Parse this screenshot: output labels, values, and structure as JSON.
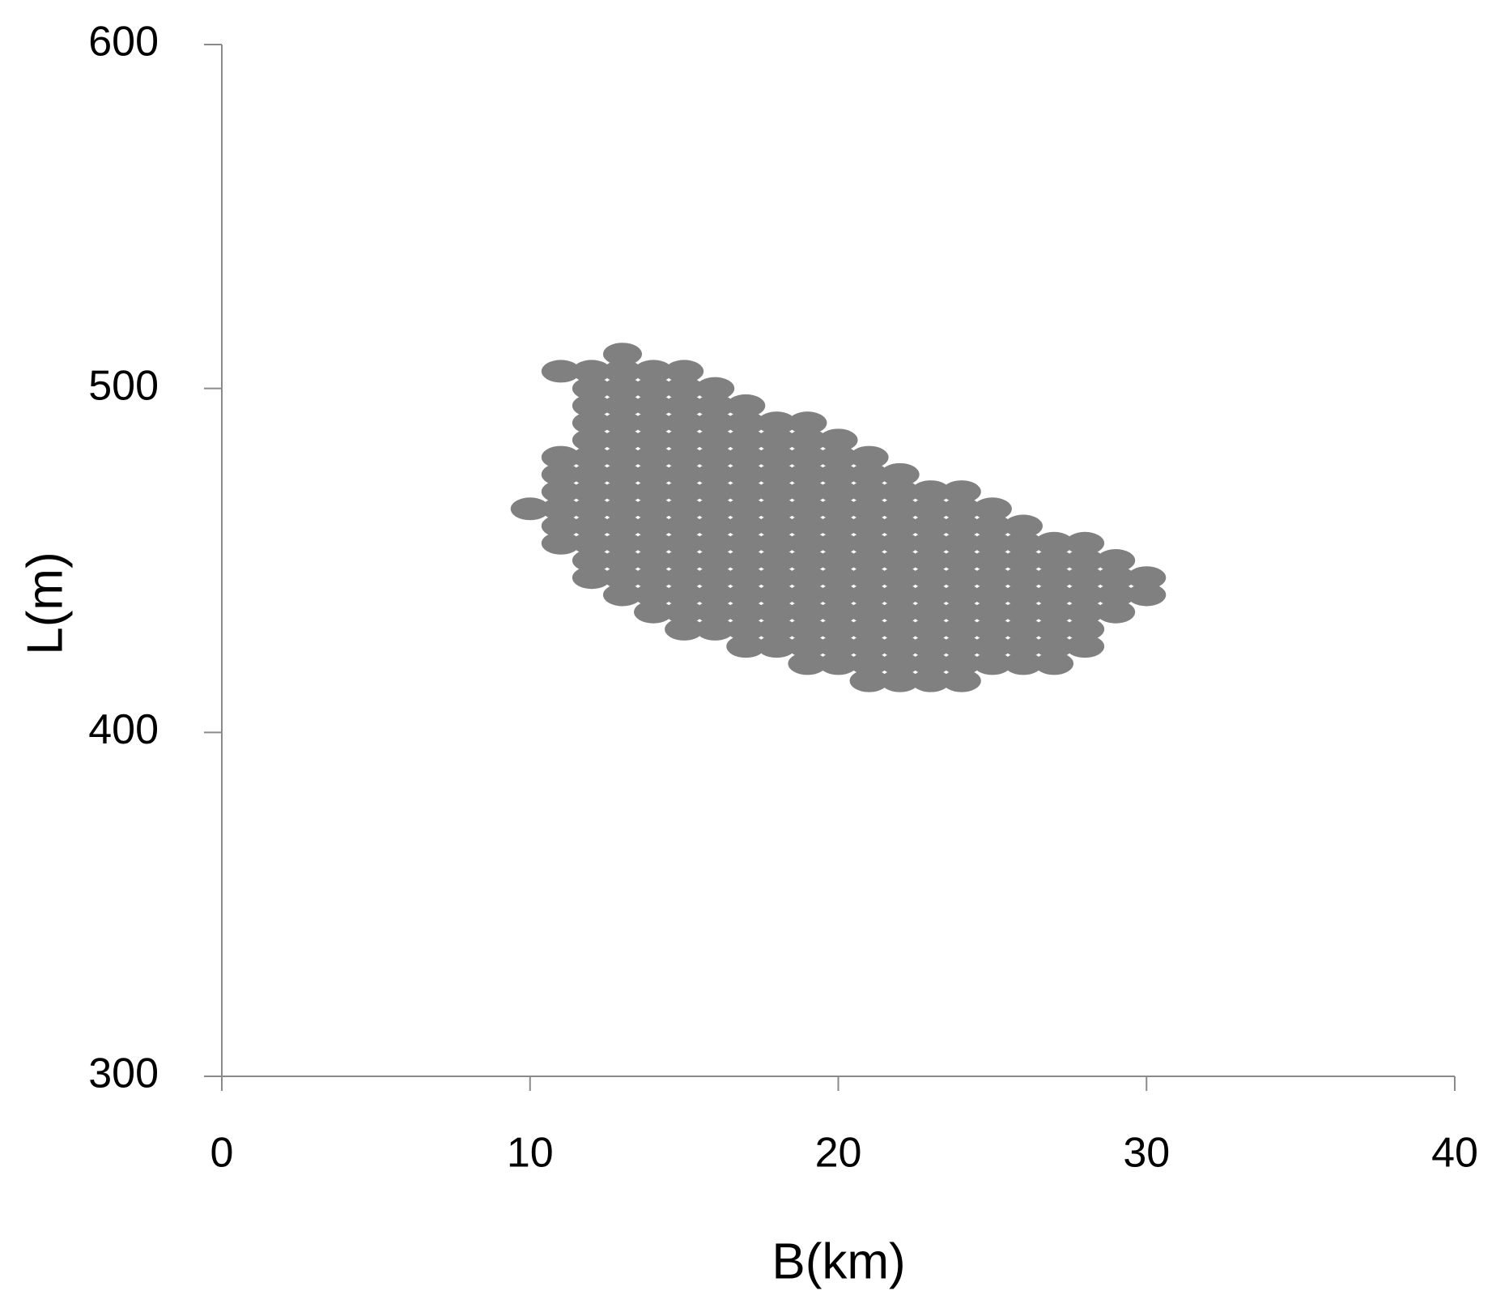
{
  "chart_data": {
    "type": "scatter",
    "color": "#808080",
    "x_label": "B(km)",
    "y_label": "L(m)",
    "xlim": [
      0,
      40
    ],
    "xticks": [
      0,
      10,
      20,
      30,
      40
    ],
    "ylim": [
      300,
      600
    ],
    "yticks": [
      300,
      400,
      500,
      600
    ],
    "x": [
      10,
      11,
      11,
      11,
      11,
      11,
      11,
      11,
      12,
      12,
      12,
      12,
      12,
      12,
      12,
      12,
      12,
      12,
      12,
      12,
      12,
      13,
      13,
      13,
      13,
      13,
      13,
      13,
      13,
      13,
      13,
      13,
      13,
      13,
      13,
      13,
      14,
      14,
      14,
      14,
      14,
      14,
      14,
      14,
      14,
      14,
      14,
      14,
      14,
      14,
      14,
      15,
      15,
      15,
      15,
      15,
      15,
      15,
      15,
      15,
      15,
      15,
      15,
      15,
      15,
      15,
      15,
      16,
      16,
      16,
      16,
      16,
      16,
      16,
      16,
      16,
      16,
      16,
      16,
      16,
      16,
      16,
      17,
      17,
      17,
      17,
      17,
      17,
      17,
      17,
      17,
      17,
      17,
      17,
      17,
      17,
      17,
      18,
      18,
      18,
      18,
      18,
      18,
      18,
      18,
      18,
      18,
      18,
      18,
      18,
      18,
      19,
      19,
      19,
      19,
      19,
      19,
      19,
      19,
      19,
      19,
      19,
      19,
      19,
      19,
      19,
      20,
      20,
      20,
      20,
      20,
      20,
      20,
      20,
      20,
      20,
      20,
      20,
      20,
      20,
      21,
      21,
      21,
      21,
      21,
      21,
      21,
      21,
      21,
      21,
      21,
      21,
      21,
      21,
      22,
      22,
      22,
      22,
      22,
      22,
      22,
      22,
      22,
      22,
      22,
      22,
      22,
      23,
      23,
      23,
      23,
      23,
      23,
      23,
      23,
      23,
      23,
      23,
      23,
      24,
      24,
      24,
      24,
      24,
      24,
      24,
      24,
      24,
      24,
      24,
      24,
      25,
      25,
      25,
      25,
      25,
      25,
      25,
      25,
      25,
      25,
      26,
      26,
      26,
      26,
      26,
      26,
      26,
      26,
      26,
      27,
      27,
      27,
      27,
      27,
      27,
      27,
      27,
      28,
      28,
      28,
      28,
      28,
      28,
      28,
      29,
      29,
      29,
      29,
      30,
      30
    ],
    "values": [
      465,
      455,
      460,
      465,
      470,
      475,
      480,
      505,
      445,
      450,
      455,
      460,
      465,
      470,
      475,
      480,
      485,
      490,
      495,
      500,
      505,
      440,
      445,
      450,
      455,
      460,
      465,
      470,
      475,
      480,
      485,
      490,
      495,
      500,
      505,
      510,
      435,
      440,
      445,
      450,
      455,
      460,
      465,
      470,
      475,
      480,
      485,
      490,
      495,
      500,
      505,
      430,
      435,
      440,
      445,
      450,
      455,
      460,
      465,
      470,
      475,
      480,
      485,
      490,
      495,
      500,
      505,
      430,
      435,
      440,
      445,
      450,
      455,
      460,
      465,
      470,
      475,
      480,
      485,
      490,
      495,
      500,
      425,
      430,
      435,
      440,
      445,
      450,
      455,
      460,
      465,
      470,
      475,
      480,
      485,
      490,
      495,
      425,
      430,
      435,
      440,
      445,
      450,
      455,
      460,
      465,
      470,
      475,
      480,
      485,
      490,
      420,
      425,
      430,
      435,
      440,
      445,
      450,
      455,
      460,
      465,
      470,
      475,
      480,
      485,
      490,
      420,
      425,
      430,
      435,
      440,
      445,
      450,
      455,
      460,
      465,
      470,
      475,
      480,
      485,
      415,
      420,
      425,
      430,
      435,
      440,
      445,
      450,
      455,
      460,
      465,
      470,
      475,
      480,
      415,
      420,
      425,
      430,
      435,
      440,
      445,
      450,
      455,
      460,
      465,
      470,
      475,
      415,
      420,
      425,
      430,
      435,
      440,
      445,
      450,
      455,
      460,
      465,
      470,
      415,
      420,
      425,
      430,
      435,
      440,
      445,
      450,
      455,
      460,
      465,
      470,
      420,
      425,
      430,
      435,
      440,
      445,
      450,
      455,
      460,
      465,
      420,
      425,
      430,
      435,
      440,
      445,
      450,
      455,
      460,
      420,
      425,
      430,
      435,
      440,
      445,
      450,
      455,
      425,
      430,
      435,
      440,
      445,
      450,
      455,
      435,
      440,
      445,
      450,
      440,
      445
    ]
  }
}
